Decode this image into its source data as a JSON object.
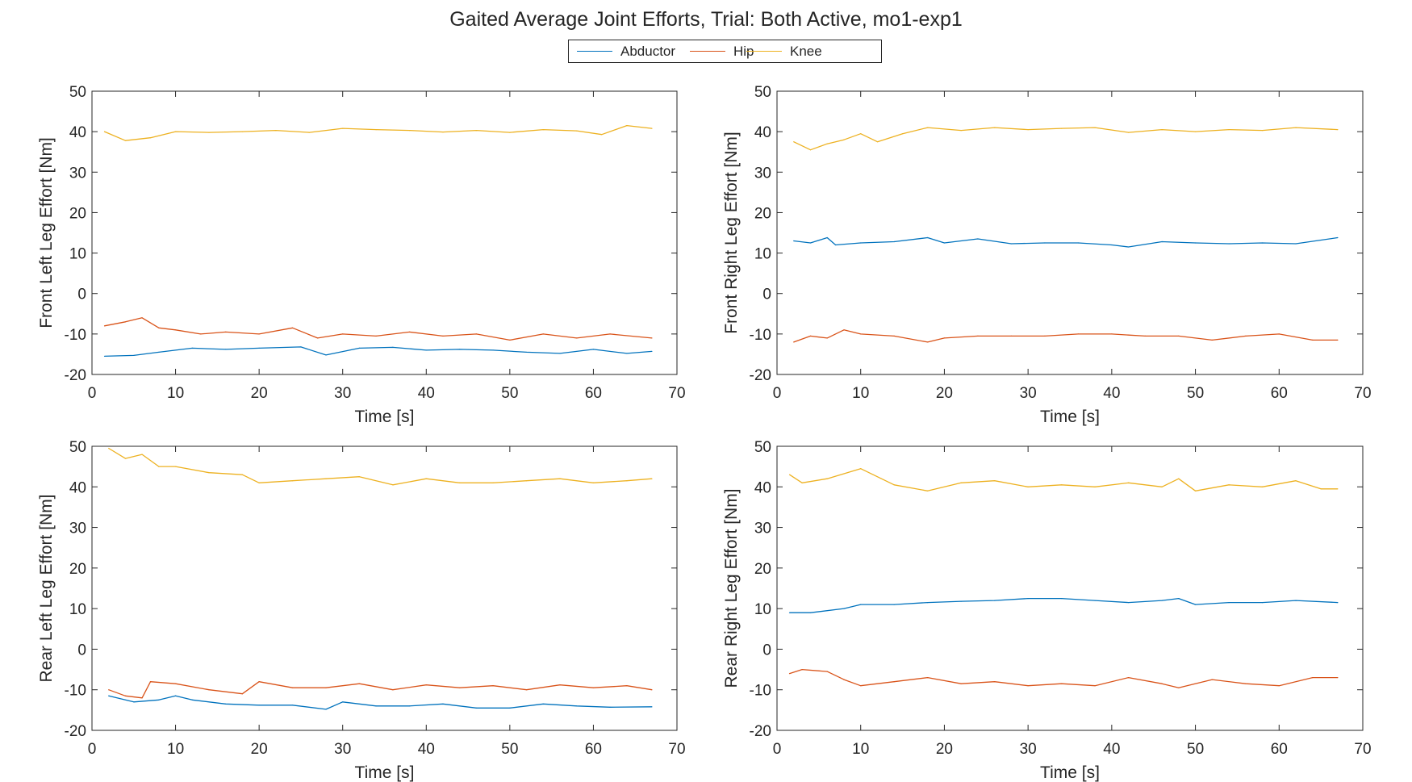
{
  "figure": {
    "title": "Gaited Average Joint Efforts,  Trial: Both Active, mo1-exp1"
  },
  "legend": {
    "entries": [
      {
        "label": "Abductor",
        "color": "#0072BD"
      },
      {
        "label": "Hip",
        "color": "#D95319"
      },
      {
        "label": "Knee",
        "color": "#EDB120"
      }
    ]
  },
  "chart_data": [
    {
      "type": "line",
      "xlabel": "Time [s]",
      "ylabel": "Front Left Leg Effort  [Nm]",
      "xlim": [
        0,
        70
      ],
      "ylim": [
        -20,
        50
      ],
      "xticks": [
        0,
        10,
        20,
        30,
        40,
        50,
        60,
        70
      ],
      "yticks": [
        -20,
        -10,
        0,
        10,
        20,
        30,
        40,
        50
      ],
      "grid": false,
      "series": [
        {
          "name": "Abductor",
          "x": [
            1.5,
            5,
            8,
            12,
            16,
            20,
            25,
            28,
            32,
            36,
            40,
            44,
            48,
            52,
            56,
            60,
            64,
            67
          ],
          "y": [
            -15.5,
            -15.3,
            -14.5,
            -13.5,
            -13.8,
            -13.5,
            -13.2,
            -15.2,
            -13.5,
            -13.3,
            -14,
            -13.8,
            -14,
            -14.5,
            -14.8,
            -13.8,
            -14.8,
            -14.3
          ]
        },
        {
          "name": "Hip",
          "x": [
            1.5,
            4,
            6,
            8,
            10,
            13,
            16,
            20,
            24,
            27,
            30,
            34,
            38,
            42,
            46,
            50,
            54,
            58,
            62,
            67
          ],
          "y": [
            -8,
            -7,
            -6,
            -8.5,
            -9,
            -10,
            -9.5,
            -10,
            -8.5,
            -11,
            -10,
            -10.5,
            -9.5,
            -10.5,
            -10,
            -11.5,
            -10,
            -11,
            -10,
            -11
          ]
        },
        {
          "name": "Knee",
          "x": [
            1.5,
            4,
            7,
            10,
            14,
            18,
            22,
            26,
            30,
            34,
            38,
            42,
            46,
            50,
            54,
            58,
            61,
            64,
            67
          ],
          "y": [
            40,
            37.8,
            38.5,
            40,
            39.8,
            40,
            40.3,
            39.8,
            40.8,
            40.5,
            40.3,
            39.9,
            40.3,
            39.8,
            40.5,
            40.2,
            39.3,
            41.5,
            40.8
          ]
        }
      ]
    },
    {
      "type": "line",
      "xlabel": "Time [s]",
      "ylabel": "Front Right Leg Effort  [Nm]",
      "xlim": [
        0,
        70
      ],
      "ylim": [
        -20,
        50
      ],
      "xticks": [
        0,
        10,
        20,
        30,
        40,
        50,
        60,
        70
      ],
      "yticks": [
        -20,
        -10,
        0,
        10,
        20,
        30,
        40,
        50
      ],
      "grid": false,
      "series": [
        {
          "name": "Abductor",
          "x": [
            2,
            4,
            6,
            7,
            10,
            14,
            18,
            20,
            24,
            28,
            32,
            36,
            40,
            42,
            46,
            50,
            54,
            58,
            62,
            67
          ],
          "y": [
            13,
            12.5,
            13.8,
            12,
            12.5,
            12.8,
            13.8,
            12.5,
            13.5,
            12.3,
            12.5,
            12.5,
            12,
            11.5,
            12.8,
            12.5,
            12.3,
            12.5,
            12.3,
            13.8
          ]
        },
        {
          "name": "Hip",
          "x": [
            2,
            4,
            6,
            8,
            10,
            14,
            18,
            20,
            24,
            28,
            32,
            36,
            40,
            44,
            48,
            52,
            56,
            60,
            64,
            67
          ],
          "y": [
            -12,
            -10.5,
            -11,
            -9,
            -10,
            -10.5,
            -12,
            -11,
            -10.5,
            -10.5,
            -10.5,
            -10,
            -10,
            -10.5,
            -10.5,
            -11.5,
            -10.5,
            -10,
            -11.5,
            -11.5
          ]
        },
        {
          "name": "Knee",
          "x": [
            2,
            4,
            6,
            8,
            10,
            12,
            15,
            18,
            22,
            26,
            30,
            34,
            38,
            42,
            46,
            50,
            54,
            58,
            62,
            67
          ],
          "y": [
            37.5,
            35.5,
            37,
            38,
            39.5,
            37.5,
            39.5,
            41,
            40.3,
            41,
            40.5,
            40.8,
            41,
            39.8,
            40.5,
            40,
            40.5,
            40.3,
            41,
            40.5
          ]
        }
      ]
    },
    {
      "type": "line",
      "xlabel": "Time [s]",
      "ylabel": "Rear Left Leg Effort  [Nm]",
      "xlim": [
        0,
        70
      ],
      "ylim": [
        -20,
        50
      ],
      "xticks": [
        0,
        10,
        20,
        30,
        40,
        50,
        60,
        70
      ],
      "yticks": [
        -20,
        -10,
        0,
        10,
        20,
        30,
        40,
        50
      ],
      "grid": false,
      "series": [
        {
          "name": "Abductor",
          "x": [
            2,
            5,
            8,
            10,
            12,
            16,
            20,
            24,
            28,
            30,
            34,
            38,
            42,
            46,
            50,
            54,
            58,
            62,
            67
          ],
          "y": [
            -11.5,
            -13,
            -12.5,
            -11.5,
            -12.5,
            -13.5,
            -13.8,
            -13.8,
            -14.8,
            -13,
            -14,
            -14,
            -13.5,
            -14.5,
            -14.5,
            -13.5,
            -14,
            -14.3,
            -14.2
          ]
        },
        {
          "name": "Hip",
          "x": [
            2,
            4,
            6,
            7,
            10,
            14,
            18,
            20,
            24,
            28,
            32,
            36,
            40,
            44,
            48,
            52,
            56,
            60,
            64,
            67
          ],
          "y": [
            -10,
            -11.5,
            -12,
            -8,
            -8.5,
            -10,
            -11,
            -8,
            -9.5,
            -9.5,
            -8.5,
            -10,
            -8.8,
            -9.5,
            -9,
            -10,
            -8.8,
            -9.5,
            -9,
            -10
          ]
        },
        {
          "name": "Knee",
          "x": [
            2,
            4,
            6,
            8,
            10,
            14,
            18,
            20,
            24,
            28,
            32,
            36,
            40,
            44,
            48,
            52,
            56,
            60,
            64,
            67
          ],
          "y": [
            49.5,
            47,
            48,
            45,
            45,
            43.5,
            43,
            41,
            41.5,
            42,
            42.5,
            40.5,
            42,
            41,
            41,
            41.5,
            42,
            41,
            41.5,
            42
          ]
        }
      ]
    },
    {
      "type": "line",
      "xlabel": "Time [s]",
      "ylabel": "Rear Right Leg Effort  [Nm]",
      "xlim": [
        0,
        70
      ],
      "ylim": [
        -20,
        50
      ],
      "xticks": [
        0,
        10,
        20,
        30,
        40,
        50,
        60,
        70
      ],
      "yticks": [
        -20,
        -10,
        0,
        10,
        20,
        30,
        40,
        50
      ],
      "grid": false,
      "series": [
        {
          "name": "Abductor",
          "x": [
            1.5,
            4,
            8,
            10,
            14,
            18,
            22,
            26,
            30,
            34,
            38,
            42,
            46,
            48,
            50,
            54,
            58,
            62,
            67
          ],
          "y": [
            9,
            9,
            10,
            11,
            11,
            11.5,
            11.8,
            12,
            12.5,
            12.5,
            12,
            11.5,
            12,
            12.5,
            11,
            11.5,
            11.5,
            12,
            11.5
          ]
        },
        {
          "name": "Hip",
          "x": [
            1.5,
            3,
            6,
            8,
            10,
            14,
            18,
            22,
            26,
            30,
            34,
            38,
            42,
            46,
            48,
            52,
            56,
            60,
            64,
            67
          ],
          "y": [
            -6,
            -5,
            -5.5,
            -7.5,
            -9,
            -8,
            -7,
            -8.5,
            -8,
            -9,
            -8.5,
            -9,
            -7,
            -8.5,
            -9.5,
            -7.5,
            -8.5,
            -9,
            -7,
            -7
          ]
        },
        {
          "name": "Knee",
          "x": [
            1.5,
            3,
            6,
            10,
            14,
            18,
            22,
            26,
            30,
            34,
            38,
            42,
            46,
            48,
            50,
            54,
            58,
            62,
            65,
            67
          ],
          "y": [
            43,
            41,
            42,
            44.5,
            40.5,
            39,
            41,
            41.5,
            40,
            40.5,
            40,
            41,
            40,
            42,
            39,
            40.5,
            40,
            41.5,
            39.5,
            39.5
          ]
        }
      ]
    }
  ]
}
